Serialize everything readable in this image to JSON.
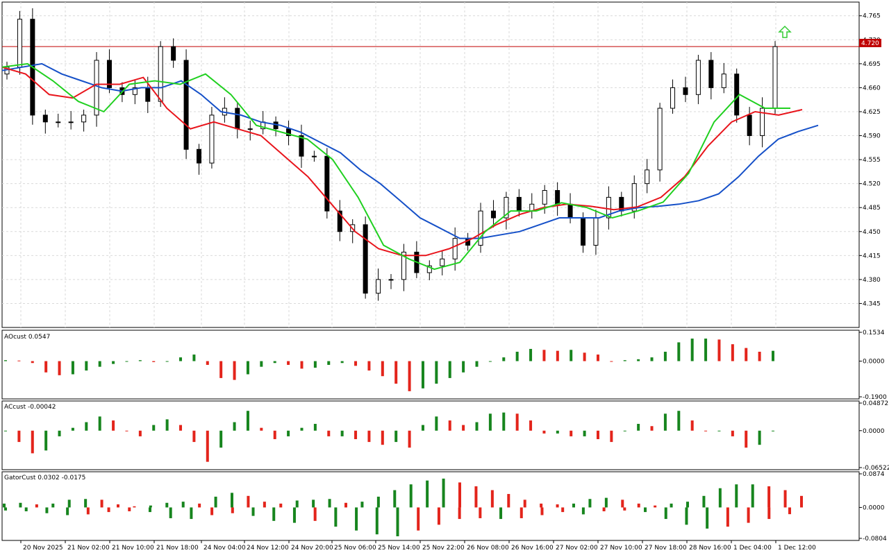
{
  "colors": {
    "background": "#ffffff",
    "grid": "#d9d9d9",
    "frame": "#000000",
    "candle_bull_fill": "#ffffff",
    "candle_bear_fill": "#000000",
    "candle_outline": "#000000",
    "jaw": "#1550c8",
    "teeth": "#e8141b",
    "lips": "#20d020",
    "price_line": "#c00000",
    "price_tag_bg": "#c00000",
    "price_tag_text": "#ffffff",
    "bar_up": "#17851e",
    "bar_down": "#e3241b",
    "fractal": "#a8a8a8",
    "signal_arrow": "#33cc33"
  },
  "price_tag": "4.720",
  "signal": "up-arrow",
  "chart_data": [
    {
      "type": "candlestick",
      "title": "",
      "ylim": [
        4.31,
        4.785
      ],
      "y_ticks": [
        "4.765",
        "4.730",
        "4.695",
        "4.660",
        "4.625",
        "4.590",
        "4.555",
        "4.520",
        "4.485",
        "4.450",
        "4.415",
        "4.380",
        "4.345"
      ],
      "x_ticks": [
        "20 Nov 2025",
        "21 Nov 02:00",
        "21 Nov 10:00",
        "21 Nov 18:00",
        "24 Nov 04:00",
        "24 Nov 12:00",
        "24 Nov 20:00",
        "25 Nov 06:00",
        "25 Nov 14:00",
        "25 Nov 22:00",
        "26 Nov 08:00",
        "26 Nov 16:00",
        "27 Nov 02:00",
        "27 Nov 10:00",
        "27 Nov 18:00",
        "28 Nov 16:00",
        "1 Dec 04:00",
        "1 Dec 12:00"
      ],
      "current_price": 4.72,
      "closes_approx": [
        4.69,
        4.76,
        4.62,
        4.61,
        4.61,
        4.61,
        4.62,
        4.7,
        4.66,
        4.65,
        4.66,
        4.64,
        4.72,
        4.7,
        4.57,
        4.55,
        4.62,
        4.63,
        4.6,
        4.6,
        4.61,
        4.6,
        4.59,
        4.56,
        4.56,
        4.48,
        4.45,
        4.46,
        4.36,
        4.38,
        4.38,
        4.42,
        4.39,
        4.4,
        4.41,
        4.44,
        4.43,
        4.48,
        4.47,
        4.5,
        4.48,
        4.49,
        4.51,
        4.49,
        4.47,
        4.43,
        4.47,
        4.5,
        4.48,
        4.52,
        4.54,
        4.63,
        4.66,
        4.65,
        4.7,
        4.66,
        4.68,
        4.62,
        4.59,
        4.63,
        4.72
      ],
      "jaw_ma": [
        4.685,
        4.69,
        4.695,
        4.68,
        4.67,
        4.66,
        4.655,
        4.66,
        4.66,
        4.67,
        4.65,
        4.625,
        4.62,
        4.61,
        4.605,
        4.595,
        4.58,
        4.565,
        4.54,
        4.52,
        4.495,
        4.47,
        4.455,
        4.44,
        4.44,
        4.445,
        4.45,
        4.46,
        4.47,
        4.47,
        4.47,
        4.48,
        4.485,
        4.487,
        4.49,
        4.495,
        4.505,
        4.53,
        4.56,
        4.585,
        4.596,
        4.605
      ],
      "teeth_ma": [
        4.69,
        4.68,
        4.65,
        4.645,
        4.665,
        4.665,
        4.675,
        4.63,
        4.6,
        4.61,
        4.6,
        4.59,
        4.56,
        4.53,
        4.49,
        4.45,
        4.425,
        4.415,
        4.415,
        4.425,
        4.44,
        4.46,
        4.475,
        4.485,
        4.49,
        4.487,
        4.482,
        4.486,
        4.5,
        4.53,
        4.575,
        4.61,
        4.625,
        4.62,
        4.628
      ],
      "lips_ma": [
        4.69,
        4.695,
        4.67,
        4.64,
        4.625,
        4.665,
        4.67,
        4.665,
        4.68,
        4.65,
        4.605,
        4.595,
        4.585,
        4.555,
        4.5,
        4.43,
        4.41,
        4.395,
        4.405,
        4.45,
        4.48,
        4.48,
        4.492,
        4.485,
        4.47,
        4.48,
        4.493,
        4.535,
        4.61,
        4.65,
        4.63,
        4.63
      ],
      "price_axis": "right",
      "grid": true
    },
    {
      "type": "bar",
      "name": "AOcust",
      "label": "AOcust 0.0547",
      "ylim": [
        -0.19,
        0.1534
      ],
      "y_ticks": [
        "0.1534",
        "0.0000",
        "-0.1900"
      ],
      "values": [
        0.005,
        0.003,
        -0.01,
        -0.06,
        -0.075,
        -0.07,
        -0.05,
        -0.03,
        -0.015,
        0.0,
        0.005,
        -0.005,
        0.0,
        0.02,
        0.035,
        -0.02,
        -0.09,
        -0.1,
        -0.07,
        -0.03,
        -0.01,
        -0.02,
        -0.04,
        -0.035,
        -0.02,
        -0.01,
        -0.025,
        -0.05,
        -0.08,
        -0.12,
        -0.16,
        -0.145,
        -0.12,
        -0.09,
        -0.06,
        -0.03,
        0.0,
        0.02,
        0.05,
        0.065,
        0.06,
        0.055,
        0.06,
        0.045,
        0.035,
        0.0,
        0.005,
        0.01,
        0.02,
        0.05,
        0.1,
        0.12,
        0.12,
        0.115,
        0.09,
        0.07,
        0.05,
        0.055
      ],
      "colors_pattern": "green when rising, red when falling"
    },
    {
      "type": "bar",
      "name": "ACcust",
      "label": "ACcust -0.00042",
      "ylim": [
        -0.06522,
        0.04872
      ],
      "y_ticks": [
        "0.04872",
        "0.0000",
        "-0.06522"
      ],
      "values": [
        0.0,
        -0.02,
        -0.04,
        -0.035,
        -0.01,
        0.005,
        0.015,
        0.025,
        0.018,
        0.0,
        -0.01,
        0.01,
        0.02,
        0.01,
        -0.02,
        -0.055,
        -0.03,
        0.015,
        0.035,
        0.005,
        -0.015,
        -0.01,
        0.005,
        0.012,
        -0.01,
        -0.01,
        -0.015,
        -0.02,
        -0.025,
        -0.02,
        -0.03,
        0.01,
        0.025,
        0.018,
        0.01,
        0.015,
        0.03,
        0.032,
        0.03,
        0.018,
        -0.005,
        -0.005,
        -0.01,
        -0.01,
        -0.015,
        -0.02,
        0.0,
        0.012,
        0.008,
        0.03,
        0.035,
        0.018,
        0.0,
        0.0,
        -0.01,
        -0.03,
        -0.025,
        -0.0004
      ],
      "colors_pattern": "green when rising, red when falling"
    },
    {
      "type": "bar",
      "name": "GatorCust",
      "label": "GatorCust 0.0302 -0.0175",
      "ylim": [
        -0.0804,
        0.0874
      ],
      "y_ticks": [
        "0.0874",
        "0.0000",
        "-0.0804"
      ],
      "upper_values": [
        0.01,
        0.012,
        0.008,
        0.01,
        0.02,
        0.022,
        0.02,
        0.008,
        0.003,
        0.005,
        0.012,
        0.015,
        0.01,
        0.028,
        0.038,
        0.03,
        0.015,
        0.01,
        0.018,
        0.02,
        0.022,
        0.012,
        0.015,
        0.028,
        0.045,
        0.06,
        0.07,
        0.075,
        0.065,
        0.055,
        0.045,
        0.035,
        0.02,
        0.01,
        0.008,
        0.01,
        0.022,
        0.025,
        0.02,
        0.01,
        0.005,
        0.01,
        0.015,
        0.03,
        0.05,
        0.06,
        0.06,
        0.055,
        0.045,
        0.03
      ],
      "lower_values": [
        -0.008,
        -0.01,
        -0.015,
        -0.02,
        -0.018,
        -0.012,
        -0.01,
        -0.012,
        -0.028,
        -0.03,
        -0.02,
        -0.015,
        -0.022,
        -0.035,
        -0.04,
        -0.035,
        -0.05,
        -0.06,
        -0.07,
        -0.075,
        -0.06,
        -0.045,
        -0.03,
        -0.028,
        -0.03,
        -0.028,
        -0.02,
        -0.012,
        -0.018,
        -0.01,
        -0.008,
        -0.012,
        -0.03,
        -0.045,
        -0.055,
        -0.05,
        -0.04,
        -0.03,
        -0.0175
      ],
      "colors_pattern": "green when expanding, red when contracting"
    }
  ]
}
